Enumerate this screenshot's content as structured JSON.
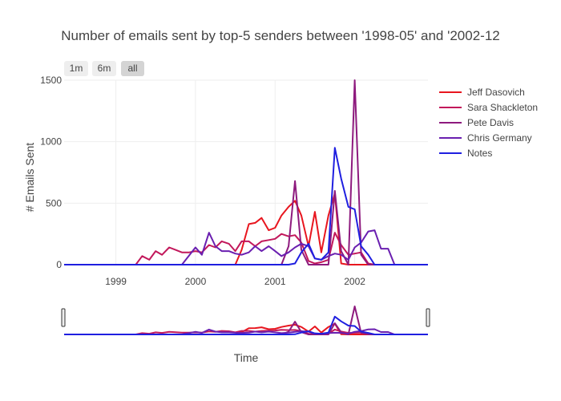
{
  "chart_data": {
    "type": "line",
    "title": "Number of emails sent by top-5 senders between '1998-05' and '2002-12",
    "xlabel": "Time",
    "ylabel": "# Emails Sent",
    "xlim": [
      1998.35,
      2002.92
    ],
    "ylim": [
      0,
      1500
    ],
    "x_ticks": [
      1999,
      2000,
      2001,
      2002
    ],
    "x_tick_labels": [
      "1999",
      "2000",
      "2001",
      "2002"
    ],
    "y_ticks": [
      0,
      500,
      1000,
      1500
    ],
    "y_tick_labels": [
      "0",
      "500",
      "1000",
      "1500"
    ],
    "grid": true,
    "legend_position": "right",
    "range_selector": {
      "buttons": [
        {
          "label": "1m",
          "active": false
        },
        {
          "label": "6m",
          "active": false
        },
        {
          "label": "all",
          "active": true
        }
      ]
    },
    "range_slider": true,
    "series": [
      {
        "name": "Jeff Dasovich",
        "color": "#e8161f",
        "points": [
          [
            1998.35,
            0
          ],
          [
            2000.5,
            0
          ],
          [
            2000.58,
            120
          ],
          [
            2000.67,
            330
          ],
          [
            2000.75,
            340
          ],
          [
            2000.83,
            380
          ],
          [
            2000.92,
            280
          ],
          [
            2001.0,
            300
          ],
          [
            2001.08,
            400
          ],
          [
            2001.17,
            470
          ],
          [
            2001.25,
            520
          ],
          [
            2001.33,
            400
          ],
          [
            2001.42,
            150
          ],
          [
            2001.5,
            430
          ],
          [
            2001.58,
            100
          ],
          [
            2001.67,
            400
          ],
          [
            2001.75,
            580
          ],
          [
            2001.83,
            10
          ],
          [
            2001.92,
            0
          ],
          [
            2002.0,
            0
          ],
          [
            2002.92,
            0
          ]
        ]
      },
      {
        "name": "Sara Shackleton",
        "color": "#c2185b",
        "points": [
          [
            1998.35,
            0
          ],
          [
            1999.25,
            0
          ],
          [
            1999.33,
            70
          ],
          [
            1999.42,
            40
          ],
          [
            1999.5,
            110
          ],
          [
            1999.58,
            80
          ],
          [
            1999.67,
            140
          ],
          [
            1999.75,
            120
          ],
          [
            1999.83,
            100
          ],
          [
            1999.92,
            100
          ],
          [
            2000.0,
            110
          ],
          [
            2000.08,
            100
          ],
          [
            2000.17,
            160
          ],
          [
            2000.25,
            140
          ],
          [
            2000.33,
            190
          ],
          [
            2000.42,
            170
          ],
          [
            2000.5,
            110
          ],
          [
            2000.58,
            190
          ],
          [
            2000.67,
            190
          ],
          [
            2000.75,
            150
          ],
          [
            2000.83,
            190
          ],
          [
            2000.92,
            200
          ],
          [
            2001.0,
            210
          ],
          [
            2001.08,
            250
          ],
          [
            2001.17,
            230
          ],
          [
            2001.25,
            240
          ],
          [
            2001.33,
            180
          ],
          [
            2001.42,
            30
          ],
          [
            2001.5,
            10
          ],
          [
            2001.58,
            20
          ],
          [
            2001.67,
            40
          ],
          [
            2001.75,
            260
          ],
          [
            2001.83,
            160
          ],
          [
            2001.92,
            80
          ],
          [
            2002.0,
            90
          ],
          [
            2002.08,
            100
          ],
          [
            2002.17,
            10
          ],
          [
            2002.25,
            0
          ],
          [
            2002.92,
            0
          ]
        ]
      },
      {
        "name": "Pete Davis",
        "color": "#8e1a7e",
        "points": [
          [
            1998.35,
            0
          ],
          [
            2001.08,
            0
          ],
          [
            2001.17,
            150
          ],
          [
            2001.25,
            680
          ],
          [
            2001.33,
            120
          ],
          [
            2001.42,
            0
          ],
          [
            2001.67,
            0
          ],
          [
            2001.75,
            600
          ],
          [
            2001.83,
            110
          ],
          [
            2001.92,
            0
          ],
          [
            2002.0,
            1500
          ],
          [
            2002.08,
            80
          ],
          [
            2002.17,
            0
          ],
          [
            2002.92,
            0
          ]
        ]
      },
      {
        "name": "Chris Germany",
        "color": "#6a1fb0",
        "points": [
          [
            1998.35,
            0
          ],
          [
            1999.83,
            0
          ],
          [
            2000.0,
            140
          ],
          [
            2000.08,
            80
          ],
          [
            2000.17,
            260
          ],
          [
            2000.25,
            150
          ],
          [
            2000.33,
            110
          ],
          [
            2000.42,
            110
          ],
          [
            2000.5,
            90
          ],
          [
            2000.58,
            80
          ],
          [
            2000.67,
            100
          ],
          [
            2000.75,
            150
          ],
          [
            2000.83,
            110
          ],
          [
            2000.92,
            150
          ],
          [
            2001.0,
            110
          ],
          [
            2001.08,
            70
          ],
          [
            2001.17,
            100
          ],
          [
            2001.25,
            140
          ],
          [
            2001.33,
            170
          ],
          [
            2001.42,
            150
          ],
          [
            2001.5,
            50
          ],
          [
            2001.58,
            40
          ],
          [
            2001.67,
            70
          ],
          [
            2001.75,
            90
          ],
          [
            2001.83,
            80
          ],
          [
            2001.92,
            40
          ],
          [
            2002.0,
            140
          ],
          [
            2002.08,
            180
          ],
          [
            2002.17,
            270
          ],
          [
            2002.25,
            280
          ],
          [
            2002.33,
            130
          ],
          [
            2002.42,
            130
          ],
          [
            2002.5,
            0
          ],
          [
            2002.92,
            0
          ]
        ]
      },
      {
        "name": "Notes",
        "color": "#1f1fe0",
        "points": [
          [
            1998.35,
            0
          ],
          [
            2001.17,
            0
          ],
          [
            2001.25,
            10
          ],
          [
            2001.33,
            100
          ],
          [
            2001.42,
            170
          ],
          [
            2001.5,
            50
          ],
          [
            2001.58,
            40
          ],
          [
            2001.67,
            100
          ],
          [
            2001.75,
            950
          ],
          [
            2001.83,
            700
          ],
          [
            2001.92,
            470
          ],
          [
            2002.0,
            450
          ],
          [
            2002.08,
            150
          ],
          [
            2002.17,
            80
          ],
          [
            2002.25,
            0
          ],
          [
            2002.92,
            0
          ]
        ]
      }
    ]
  }
}
